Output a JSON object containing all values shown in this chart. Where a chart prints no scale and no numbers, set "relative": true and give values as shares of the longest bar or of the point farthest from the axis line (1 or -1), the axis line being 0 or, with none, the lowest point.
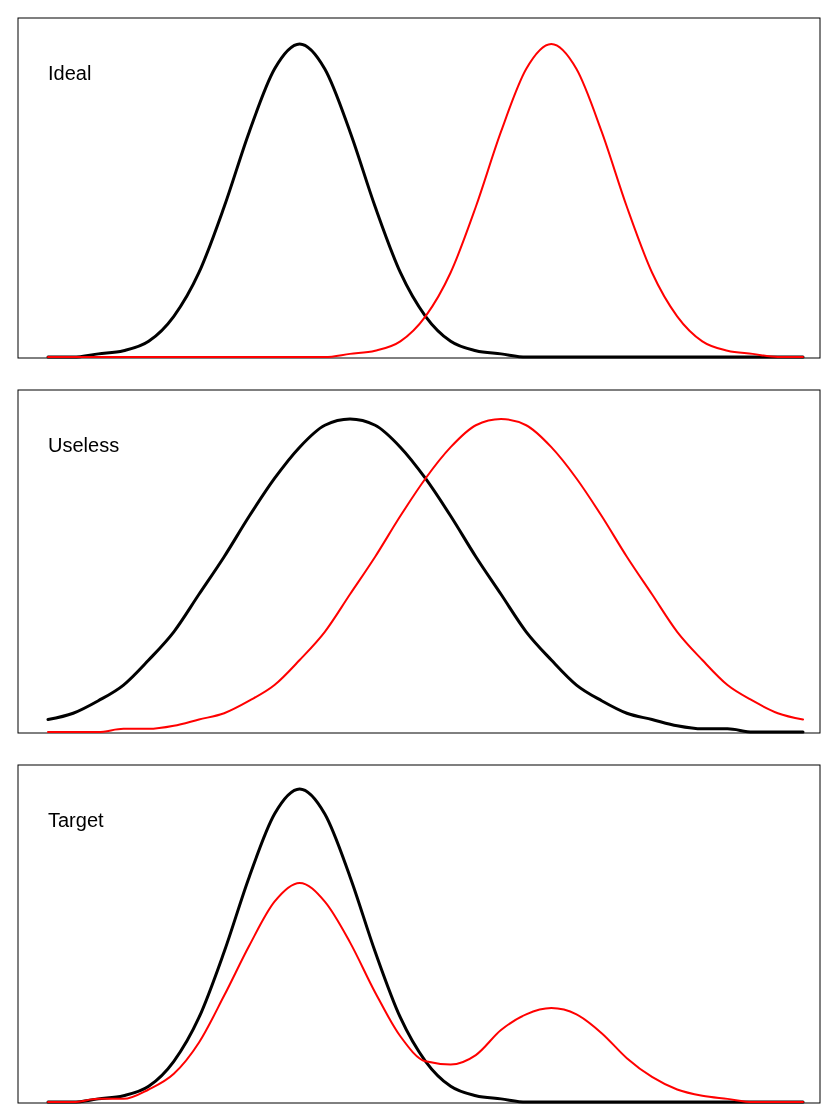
{
  "chart_data": [
    {
      "type": "line",
      "title": "Ideal",
      "relative": true,
      "categories": [
        null,
        null,
        null,
        null,
        null,
        null,
        null,
        null,
        null,
        null,
        null,
        null,
        null,
        null,
        null,
        null,
        null,
        null,
        null,
        null,
        null,
        null,
        null,
        null,
        null,
        null,
        null,
        null,
        null,
        null,
        null
      ],
      "series": [
        {
          "color": "#000000",
          "values": [
            0,
            0,
            0.01,
            0.02,
            0.05,
            0.13,
            0.27,
            0.48,
            0.72,
            0.92,
            1,
            0.92,
            0.72,
            0.48,
            0.27,
            0.13,
            0.05,
            0.02,
            0.01,
            0,
            0,
            0,
            0,
            0,
            0,
            0,
            0,
            0,
            0,
            0,
            0
          ]
        },
        {
          "color": "#ff0000",
          "values": [
            0,
            0,
            0,
            0,
            0,
            0,
            0,
            0,
            0,
            0,
            0,
            0,
            0.01,
            0.02,
            0.05,
            0.13,
            0.27,
            0.48,
            0.72,
            0.92,
            1,
            0.92,
            0.72,
            0.48,
            0.27,
            0.13,
            0.05,
            0.02,
            0.01,
            0,
            0
          ]
        }
      ]
    },
    {
      "type": "line",
      "title": "Useless",
      "relative": true,
      "categories": [
        null,
        null,
        null,
        null,
        null,
        null,
        null,
        null,
        null,
        null,
        null,
        null,
        null,
        null,
        null,
        null,
        null,
        null,
        null,
        null,
        null,
        null,
        null,
        null,
        null,
        null,
        null,
        null,
        null,
        null,
        null
      ],
      "series": [
        {
          "color": "#000000",
          "values": [
            0.04,
            0.06,
            0.1,
            0.15,
            0.23,
            0.32,
            0.44,
            0.56,
            0.69,
            0.81,
            0.91,
            0.98,
            1,
            0.98,
            0.91,
            0.81,
            0.69,
            0.56,
            0.44,
            0.32,
            0.23,
            0.15,
            0.1,
            0.06,
            0.04,
            0.02,
            0.01,
            0.01,
            0,
            0,
            0
          ]
        },
        {
          "color": "#ff0000",
          "values": [
            0,
            0,
            0,
            0.01,
            0.01,
            0.02,
            0.04,
            0.06,
            0.1,
            0.15,
            0.23,
            0.32,
            0.44,
            0.56,
            0.69,
            0.81,
            0.91,
            0.98,
            1,
            0.98,
            0.91,
            0.81,
            0.69,
            0.56,
            0.44,
            0.32,
            0.23,
            0.15,
            0.1,
            0.06,
            0.04
          ]
        }
      ]
    },
    {
      "type": "line",
      "title": "Target",
      "relative": true,
      "categories": [
        null,
        null,
        null,
        null,
        null,
        null,
        null,
        null,
        null,
        null,
        null,
        null,
        null,
        null,
        null,
        null,
        null,
        null,
        null,
        null,
        null,
        null,
        null,
        null,
        null,
        null,
        null,
        null,
        null,
        null,
        null
      ],
      "series": [
        {
          "color": "#000000",
          "values": [
            0,
            0,
            0.01,
            0.02,
            0.05,
            0.13,
            0.27,
            0.48,
            0.72,
            0.92,
            1,
            0.92,
            0.72,
            0.48,
            0.27,
            0.13,
            0.05,
            0.02,
            0.01,
            0,
            0,
            0,
            0,
            0,
            0,
            0,
            0,
            0,
            0,
            0,
            0
          ]
        },
        {
          "color": "#ff0000",
          "values": [
            0,
            0,
            0.01,
            0.01,
            0.04,
            0.09,
            0.19,
            0.34,
            0.5,
            0.64,
            0.7,
            0.64,
            0.51,
            0.35,
            0.21,
            0.13,
            0.12,
            0.15,
            0.23,
            0.28,
            0.3,
            0.28,
            0.22,
            0.14,
            0.08,
            0.04,
            0.02,
            0.01,
            0,
            0,
            0
          ]
        }
      ]
    }
  ]
}
